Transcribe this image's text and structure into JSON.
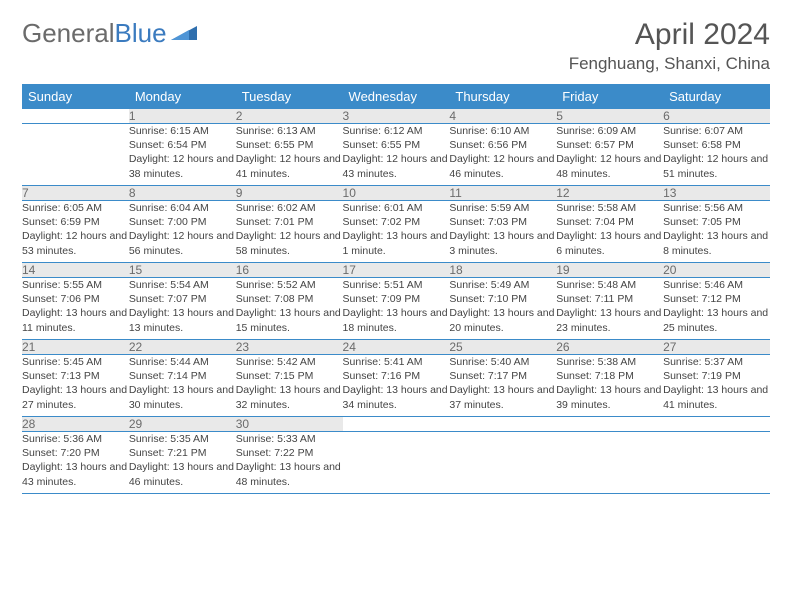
{
  "brand": {
    "part1": "General",
    "part2": "Blue"
  },
  "title": "April 2024",
  "location": "Fenghuang, Shanxi, China",
  "colors": {
    "header_bg": "#3b8bc9",
    "header_text": "#ffffff",
    "daynum_bg": "#e9e9e9",
    "daynum_text": "#6b6b6b",
    "body_text": "#444444",
    "rule": "#3b8bc9",
    "brand_gray": "#6b6b6b",
    "brand_blue": "#3b7bbf"
  },
  "weekdays": [
    "Sunday",
    "Monday",
    "Tuesday",
    "Wednesday",
    "Thursday",
    "Friday",
    "Saturday"
  ],
  "weeks": [
    {
      "nums": [
        "",
        "1",
        "2",
        "3",
        "4",
        "5",
        "6"
      ],
      "details": [
        "",
        "Sunrise: 6:15 AM\nSunset: 6:54 PM\nDaylight: 12 hours and 38 minutes.",
        "Sunrise: 6:13 AM\nSunset: 6:55 PM\nDaylight: 12 hours and 41 minutes.",
        "Sunrise: 6:12 AM\nSunset: 6:55 PM\nDaylight: 12 hours and 43 minutes.",
        "Sunrise: 6:10 AM\nSunset: 6:56 PM\nDaylight: 12 hours and 46 minutes.",
        "Sunrise: 6:09 AM\nSunset: 6:57 PM\nDaylight: 12 hours and 48 minutes.",
        "Sunrise: 6:07 AM\nSunset: 6:58 PM\nDaylight: 12 hours and 51 minutes."
      ]
    },
    {
      "nums": [
        "7",
        "8",
        "9",
        "10",
        "11",
        "12",
        "13"
      ],
      "details": [
        "Sunrise: 6:05 AM\nSunset: 6:59 PM\nDaylight: 12 hours and 53 minutes.",
        "Sunrise: 6:04 AM\nSunset: 7:00 PM\nDaylight: 12 hours and 56 minutes.",
        "Sunrise: 6:02 AM\nSunset: 7:01 PM\nDaylight: 12 hours and 58 minutes.",
        "Sunrise: 6:01 AM\nSunset: 7:02 PM\nDaylight: 13 hours and 1 minute.",
        "Sunrise: 5:59 AM\nSunset: 7:03 PM\nDaylight: 13 hours and 3 minutes.",
        "Sunrise: 5:58 AM\nSunset: 7:04 PM\nDaylight: 13 hours and 6 minutes.",
        "Sunrise: 5:56 AM\nSunset: 7:05 PM\nDaylight: 13 hours and 8 minutes."
      ]
    },
    {
      "nums": [
        "14",
        "15",
        "16",
        "17",
        "18",
        "19",
        "20"
      ],
      "details": [
        "Sunrise: 5:55 AM\nSunset: 7:06 PM\nDaylight: 13 hours and 11 minutes.",
        "Sunrise: 5:54 AM\nSunset: 7:07 PM\nDaylight: 13 hours and 13 minutes.",
        "Sunrise: 5:52 AM\nSunset: 7:08 PM\nDaylight: 13 hours and 15 minutes.",
        "Sunrise: 5:51 AM\nSunset: 7:09 PM\nDaylight: 13 hours and 18 minutes.",
        "Sunrise: 5:49 AM\nSunset: 7:10 PM\nDaylight: 13 hours and 20 minutes.",
        "Sunrise: 5:48 AM\nSunset: 7:11 PM\nDaylight: 13 hours and 23 minutes.",
        "Sunrise: 5:46 AM\nSunset: 7:12 PM\nDaylight: 13 hours and 25 minutes."
      ]
    },
    {
      "nums": [
        "21",
        "22",
        "23",
        "24",
        "25",
        "26",
        "27"
      ],
      "details": [
        "Sunrise: 5:45 AM\nSunset: 7:13 PM\nDaylight: 13 hours and 27 minutes.",
        "Sunrise: 5:44 AM\nSunset: 7:14 PM\nDaylight: 13 hours and 30 minutes.",
        "Sunrise: 5:42 AM\nSunset: 7:15 PM\nDaylight: 13 hours and 32 minutes.",
        "Sunrise: 5:41 AM\nSunset: 7:16 PM\nDaylight: 13 hours and 34 minutes.",
        "Sunrise: 5:40 AM\nSunset: 7:17 PM\nDaylight: 13 hours and 37 minutes.",
        "Sunrise: 5:38 AM\nSunset: 7:18 PM\nDaylight: 13 hours and 39 minutes.",
        "Sunrise: 5:37 AM\nSunset: 7:19 PM\nDaylight: 13 hours and 41 minutes."
      ]
    },
    {
      "nums": [
        "28",
        "29",
        "30",
        "",
        "",
        "",
        ""
      ],
      "details": [
        "Sunrise: 5:36 AM\nSunset: 7:20 PM\nDaylight: 13 hours and 43 minutes.",
        "Sunrise: 5:35 AM\nSunset: 7:21 PM\nDaylight: 13 hours and 46 minutes.",
        "Sunrise: 5:33 AM\nSunset: 7:22 PM\nDaylight: 13 hours and 48 minutes.",
        "",
        "",
        "",
        ""
      ]
    }
  ]
}
